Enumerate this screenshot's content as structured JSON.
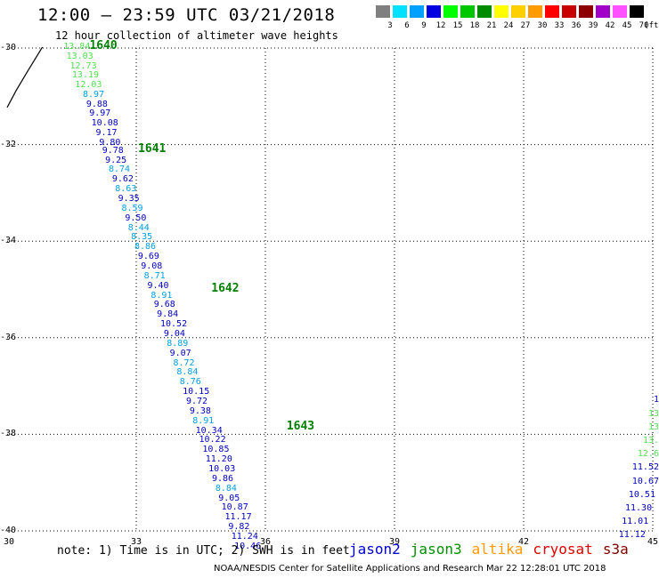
{
  "title": "12:00 – 23:59 UTC 03/21/2018",
  "subtitle": "12 hour collection of altimeter wave heights",
  "colorbar": {
    "unit": "(ft)",
    "boxes": [
      {
        "label": "3",
        "color": "#7f7f7f"
      },
      {
        "label": "6",
        "color": "#00e0ff"
      },
      {
        "label": "9",
        "color": "#00a0ff"
      },
      {
        "label": "12",
        "color": "#0000e0"
      },
      {
        "label": "15",
        "color": "#00ff00"
      },
      {
        "label": "18",
        "color": "#00c800"
      },
      {
        "label": "21",
        "color": "#008c00"
      },
      {
        "label": "24",
        "color": "#ffff00"
      },
      {
        "label": "27",
        "color": "#ffd000"
      },
      {
        "label": "30",
        "color": "#ff9a00"
      },
      {
        "label": "33",
        "color": "#ff0000"
      },
      {
        "label": "36",
        "color": "#c80000"
      },
      {
        "label": "39",
        "color": "#8c0000"
      },
      {
        "label": "42",
        "color": "#a000c8"
      },
      {
        "label": "45",
        "color": "#ff50ff"
      },
      {
        "label": "70",
        "color": "#000000"
      }
    ]
  },
  "map": {
    "lon_range": [
      30,
      45
    ],
    "lat_range": [
      -40,
      -30
    ],
    "lon_ticks": [
      30,
      33,
      36,
      39,
      42,
      45
    ],
    "lat_ticks": [
      -30,
      -32,
      -34,
      -36,
      -38,
      -40
    ],
    "lon_tick_labels": [
      "30",
      "33",
      "36",
      "39",
      "42",
      "45"
    ],
    "lat_tick_labels": [
      "-30",
      "-32",
      "-34",
      "-36",
      "-38",
      "-40"
    ],
    "gridlines": "dotted"
  },
  "coastline": [
    [
      30.0,
      -31.23
    ],
    [
      30.21,
      -30.88
    ],
    [
      30.43,
      -30.55
    ],
    [
      30.6,
      -30.3
    ],
    [
      30.82,
      -29.98
    ]
  ],
  "orbits": [
    {
      "label": "1640",
      "lon": 32.12,
      "lat": -29.95
    },
    {
      "label": "1641",
      "lon": 33.25,
      "lat": -32.08
    },
    {
      "label": "1642",
      "lon": 34.95,
      "lat": -34.97
    },
    {
      "label": "1643",
      "lon": 36.7,
      "lat": -37.83
    }
  ],
  "observations": [
    {
      "swh": "13.84",
      "lon": 31.35,
      "lat": -29.99,
      "color": "#50e050"
    },
    {
      "swh": "13.03",
      "lon": 31.42,
      "lat": -30.18,
      "color": "#50e050"
    },
    {
      "swh": "12.73",
      "lon": 31.5,
      "lat": -30.38,
      "color": "#50e050"
    },
    {
      "swh": "13.19",
      "lon": 31.55,
      "lat": -30.58,
      "color": "#50e050"
    },
    {
      "swh": "12.03",
      "lon": 31.62,
      "lat": -30.77,
      "color": "#50e050"
    },
    {
      "swh": "8.97",
      "lon": 31.8,
      "lat": -30.97,
      "color": "#00a0e0"
    },
    {
      "swh": "9.88",
      "lon": 31.88,
      "lat": -31.17,
      "color": "#0000c0"
    },
    {
      "swh": "9.97",
      "lon": 31.95,
      "lat": -31.37,
      "color": "#0000c0"
    },
    {
      "swh": "10.08",
      "lon": 32.0,
      "lat": -31.57,
      "color": "#0000c0"
    },
    {
      "swh": "9.17",
      "lon": 32.1,
      "lat": -31.77,
      "color": "#0000c0"
    },
    {
      "swh": "9.80",
      "lon": 32.18,
      "lat": -31.97,
      "color": "#0000c0"
    },
    {
      "swh": "9.78",
      "lon": 32.25,
      "lat": -32.13,
      "color": "#0000c0"
    },
    {
      "swh": "9.25",
      "lon": 32.32,
      "lat": -32.33,
      "color": "#0000c0"
    },
    {
      "swh": "8.74",
      "lon": 32.4,
      "lat": -32.53,
      "color": "#00a0e0"
    },
    {
      "swh": "9.62",
      "lon": 32.48,
      "lat": -32.73,
      "color": "#0000c0"
    },
    {
      "swh": "8.63",
      "lon": 32.55,
      "lat": -32.93,
      "color": "#00a0e0"
    },
    {
      "swh": "9.35",
      "lon": 32.62,
      "lat": -33.13,
      "color": "#0000c0"
    },
    {
      "swh": "8.59",
      "lon": 32.7,
      "lat": -33.33,
      "color": "#00a0e0"
    },
    {
      "swh": "9.50",
      "lon": 32.78,
      "lat": -33.53,
      "color": "#0000c0"
    },
    {
      "swh": "8.44",
      "lon": 32.85,
      "lat": -33.73,
      "color": "#00a0e0"
    },
    {
      "swh": "8.35",
      "lon": 32.92,
      "lat": -33.93,
      "color": "#00a0e0"
    },
    {
      "swh": "8.86",
      "lon": 33.0,
      "lat": -34.13,
      "color": "#00a0e0"
    },
    {
      "swh": "9.69",
      "lon": 33.08,
      "lat": -34.33,
      "color": "#0000c0"
    },
    {
      "swh": "9.08",
      "lon": 33.15,
      "lat": -34.53,
      "color": "#0000c0"
    },
    {
      "swh": "8.71",
      "lon": 33.22,
      "lat": -34.73,
      "color": "#00a0e0"
    },
    {
      "swh": "9.40",
      "lon": 33.3,
      "lat": -34.93,
      "color": "#0000c0"
    },
    {
      "swh": "8.91",
      "lon": 33.38,
      "lat": -35.13,
      "color": "#00a0e0"
    },
    {
      "swh": "9.68",
      "lon": 33.45,
      "lat": -35.33,
      "color": "#0000c0"
    },
    {
      "swh": "9.84",
      "lon": 33.52,
      "lat": -35.53,
      "color": "#0000c0"
    },
    {
      "swh": "10.52",
      "lon": 33.6,
      "lat": -35.73,
      "color": "#0000c0"
    },
    {
      "swh": "9.04",
      "lon": 33.68,
      "lat": -35.93,
      "color": "#0000c0"
    },
    {
      "swh": "8.89",
      "lon": 33.75,
      "lat": -36.13,
      "color": "#00a0e0"
    },
    {
      "swh": "9.07",
      "lon": 33.82,
      "lat": -36.33,
      "color": "#0000c0"
    },
    {
      "swh": "8.72",
      "lon": 33.9,
      "lat": -36.53,
      "color": "#00a0e0"
    },
    {
      "swh": "8.84",
      "lon": 33.98,
      "lat": -36.73,
      "color": "#00a0e0"
    },
    {
      "swh": "8.76",
      "lon": 34.05,
      "lat": -36.93,
      "color": "#00a0e0"
    },
    {
      "swh": "10.15",
      "lon": 34.12,
      "lat": -37.13,
      "color": "#0000c0"
    },
    {
      "swh": "9.72",
      "lon": 34.2,
      "lat": -37.33,
      "color": "#0000c0"
    },
    {
      "swh": "9.38",
      "lon": 34.28,
      "lat": -37.53,
      "color": "#0000c0"
    },
    {
      "swh": "8.91",
      "lon": 34.35,
      "lat": -37.73,
      "color": "#00a0e0"
    },
    {
      "swh": "10.34",
      "lon": 34.42,
      "lat": -37.93,
      "color": "#0000c0"
    },
    {
      "swh": "10.22",
      "lon": 34.5,
      "lat": -38.13,
      "color": "#0000c0"
    },
    {
      "swh": "10.85",
      "lon": 34.58,
      "lat": -38.33,
      "color": "#0000c0"
    },
    {
      "swh": "11.20",
      "lon": 34.65,
      "lat": -38.53,
      "color": "#0000c0"
    },
    {
      "swh": "10.03",
      "lon": 34.72,
      "lat": -38.73,
      "color": "#0000c0"
    },
    {
      "swh": "9.86",
      "lon": 34.8,
      "lat": -38.93,
      "color": "#0000c0"
    },
    {
      "swh": "8.84",
      "lon": 34.88,
      "lat": -39.13,
      "color": "#00a0e0"
    },
    {
      "swh": "9.05",
      "lon": 34.95,
      "lat": -39.33,
      "color": "#0000c0"
    },
    {
      "swh": "10.87",
      "lon": 35.02,
      "lat": -39.53,
      "color": "#0000c0"
    },
    {
      "swh": "11.17",
      "lon": 35.1,
      "lat": -39.73,
      "color": "#0000c0"
    },
    {
      "swh": "9.82",
      "lon": 35.18,
      "lat": -39.93,
      "color": "#0000c0"
    },
    {
      "swh": "11.24",
      "lon": 35.25,
      "lat": -40.13,
      "color": "#0000c0"
    },
    {
      "swh": "10.46",
      "lon": 35.32,
      "lat": -40.33,
      "color": "#0000c0"
    },
    {
      "swh": "1",
      "lon": 44.95,
      "lat": -37.3,
      "color": "#0000c0"
    },
    {
      "swh": "13",
      "lon": 44.95,
      "lat": -37.58,
      "color": "#50e050"
    },
    {
      "swh": "13",
      "lon": 44.95,
      "lat": -37.86,
      "color": "#50e050"
    },
    {
      "swh": "13.",
      "lon": 44.85,
      "lat": -38.14,
      "color": "#50e050"
    },
    {
      "swh": "12.6",
      "lon": 44.7,
      "lat": -38.42,
      "color": "#50e050"
    },
    {
      "swh": "11.52",
      "lon": 44.6,
      "lat": -38.7,
      "color": "#0000c0"
    },
    {
      "swh": "10.67",
      "lon": 44.55,
      "lat": -38.98,
      "color": "#0000c0"
    },
    {
      "swh": "10.51",
      "lon": 44.48,
      "lat": -39.26,
      "color": "#0000c0"
    },
    {
      "swh": "11.30",
      "lon": 44.4,
      "lat": -39.54,
      "color": "#0000c0"
    },
    {
      "swh": "11.01",
      "lon": 44.32,
      "lat": -39.82,
      "color": "#0000c0"
    },
    {
      "swh": "11.12",
      "lon": 44.25,
      "lat": -40.1,
      "color": "#0000c0"
    }
  ],
  "note": "note: 1) Time is in UTC; 2) SWH is in feet",
  "satellites": [
    {
      "name": "jason2",
      "color": "#0000d0"
    },
    {
      "name": "jason3",
      "color": "#009000"
    },
    {
      "name": "altika",
      "color": "#ff9a00"
    },
    {
      "name": "cryosat",
      "color": "#e00000"
    },
    {
      "name": "s3a",
      "color": "#800000"
    }
  ],
  "credit": "NOAA/NESDIS Center for Satellite Applications and Research    Mar 22 12:28:01 UTC 2018"
}
